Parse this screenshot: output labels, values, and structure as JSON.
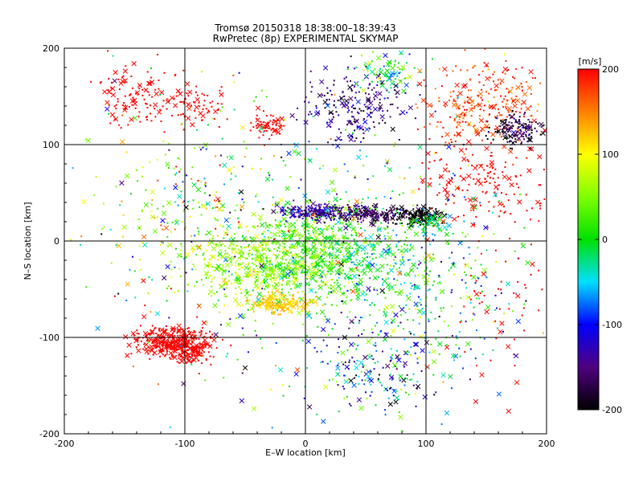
{
  "chart_data": {
    "type": "scatter",
    "title": "Tromsø 20150318 18:38:00–18:39:43",
    "subtitle": "RwPretec (8p) EXPERIMENTAL SKYMAP",
    "xlabel": "E–W location [km]",
    "ylabel": "N–S location [km]",
    "xlim": [
      -200,
      200
    ],
    "ylim": [
      -200,
      200
    ],
    "xticks": [
      "-200",
      "-100",
      "0",
      "100",
      "200"
    ],
    "yticks": [
      "-200",
      "-100",
      "0",
      "100",
      "200"
    ],
    "grid": true,
    "colorbar": {
      "label": "[m/s]",
      "range": [
        -200,
        200
      ],
      "ticks": [
        "200",
        "100",
        "0",
        "-100",
        "-200"
      ]
    },
    "markers": [
      "cross",
      "dot"
    ],
    "clusters": [
      {
        "x": -40,
        "y": -25,
        "sx": 45,
        "sy": 30,
        "n": 520,
        "v": 60,
        "vs": 45
      },
      {
        "x": 10,
        "y": -10,
        "sx": 40,
        "sy": 35,
        "n": 520,
        "v": 20,
        "vs": 40
      },
      {
        "x": 60,
        "y": -30,
        "sx": 40,
        "sy": 40,
        "n": 260,
        "v": -10,
        "vs": 60
      },
      {
        "x": -20,
        "y": -65,
        "sx": 18,
        "sy": 7,
        "n": 160,
        "v": 120,
        "vs": 15
      },
      {
        "x": -110,
        "y": -105,
        "sx": 22,
        "sy": 12,
        "n": 380,
        "v": 200,
        "vs": 5
      },
      {
        "x": -95,
        "y": -115,
        "sx": 12,
        "sy": 10,
        "n": 100,
        "v": 200,
        "vs": 5
      },
      {
        "x": 10,
        "y": 30,
        "sx": 22,
        "sy": 6,
        "n": 200,
        "v": -140,
        "vs": 30
      },
      {
        "x": 55,
        "y": 28,
        "sx": 20,
        "sy": 6,
        "n": 180,
        "v": -170,
        "vs": 25
      },
      {
        "x": 95,
        "y": 26,
        "sx": 12,
        "sy": 6,
        "n": 140,
        "v": -200,
        "vs": 5
      },
      {
        "x": 105,
        "y": 18,
        "sx": 10,
        "sy": 8,
        "n": 60,
        "v": -20,
        "vs": 40
      },
      {
        "x": -140,
        "y": 150,
        "sx": 22,
        "sy": 22,
        "n": 110,
        "v": 200,
        "vs": 5
      },
      {
        "x": -90,
        "y": 140,
        "sx": 15,
        "sy": 15,
        "n": 70,
        "v": 200,
        "vs": 5
      },
      {
        "x": -30,
        "y": 120,
        "sx": 12,
        "sy": 10,
        "n": 60,
        "v": 200,
        "vs": 5
      },
      {
        "x": 40,
        "y": 140,
        "sx": 30,
        "sy": 25,
        "n": 200,
        "v": -150,
        "vs": 50
      },
      {
        "x": 70,
        "y": 175,
        "sx": 20,
        "sy": 15,
        "n": 90,
        "v": 10,
        "vs": 70
      },
      {
        "x": 150,
        "y": 140,
        "sx": 35,
        "sy": 30,
        "n": 260,
        "v": 180,
        "vs": 30
      },
      {
        "x": 175,
        "y": 115,
        "sx": 15,
        "sy": 12,
        "n": 140,
        "v": -180,
        "vs": 40
      },
      {
        "x": 150,
        "y": 60,
        "sx": 40,
        "sy": 30,
        "n": 160,
        "v": 200,
        "vs": 5
      },
      {
        "x": -110,
        "y": 40,
        "sx": 50,
        "sy": 50,
        "n": 140,
        "v": 60,
        "vs": 100
      },
      {
        "x": 60,
        "y": -130,
        "sx": 40,
        "sy": 35,
        "n": 200,
        "v": -80,
        "vs": 110
      },
      {
        "x": 120,
        "y": -60,
        "sx": 40,
        "sy": 60,
        "n": 150,
        "v": -30,
        "vs": 90
      },
      {
        "x": 160,
        "y": -60,
        "sx": 25,
        "sy": 70,
        "n": 60,
        "v": 200,
        "vs": 5
      },
      {
        "x": 0,
        "y": 0,
        "sx": 120,
        "sy": 120,
        "n": 500,
        "v": 0,
        "vs": 150
      }
    ]
  }
}
